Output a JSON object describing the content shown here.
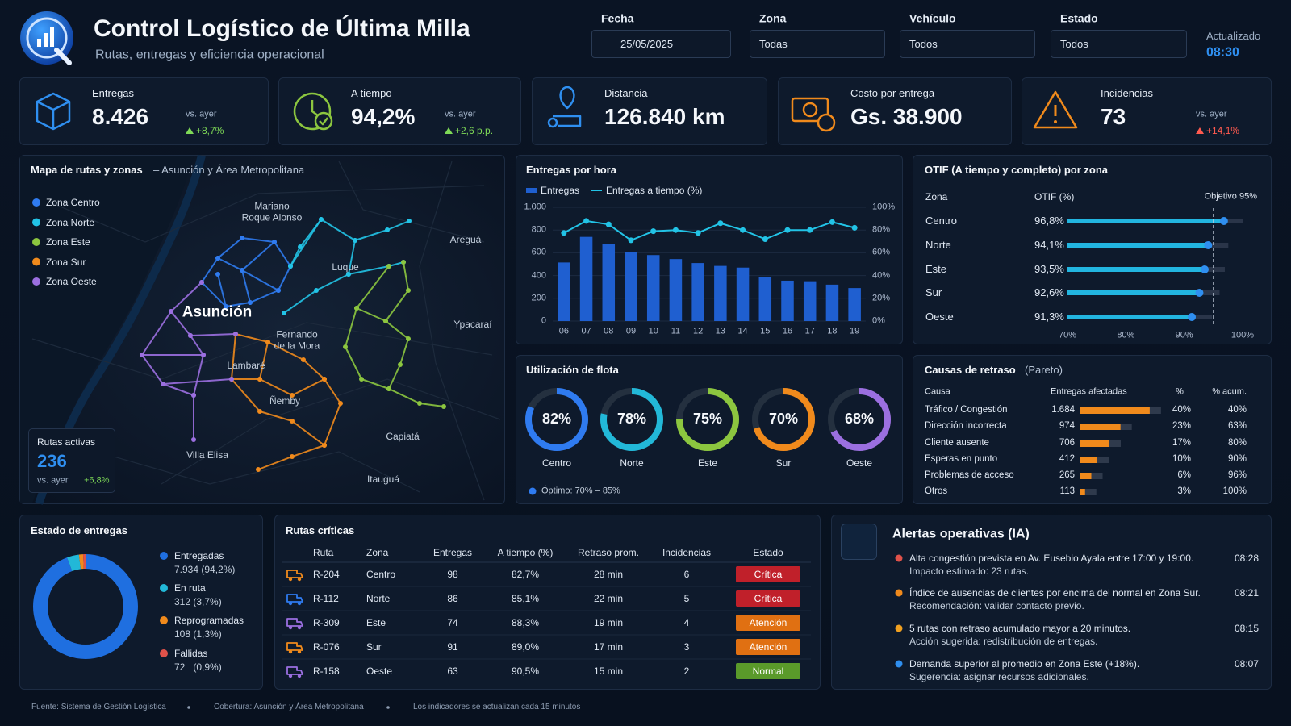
{
  "header": {
    "title": "Control Logístico de Última Milla",
    "subtitle": "Rutas, entregas y eficiencia operacional",
    "updated_label": "Actualizado",
    "updated_time": "08:30"
  },
  "filters": [
    {
      "label": "Fecha",
      "value": "25/05/2025"
    },
    {
      "label": "Zona",
      "value": "Todas"
    },
    {
      "label": "Vehículo",
      "value": "Todos"
    },
    {
      "label": "Estado",
      "value": "Todos"
    }
  ],
  "kpis": [
    {
      "label": "Entregas",
      "value": "8.426",
      "compare": "vs. ayer",
      "change": "+8,7%",
      "change_color": "#7ed957",
      "icon_color": "#2f8ff0"
    },
    {
      "label": "A tiempo",
      "value": "94,2%",
      "compare": "vs. ayer",
      "change": "+2,6 p.p.",
      "change_color": "#7ed957",
      "icon_color": "#8cc63f"
    },
    {
      "label": "Distancia",
      "value": "126.840 km",
      "icon_color": "#2f8ff0"
    },
    {
      "label": "Costo por entrega",
      "value": "Gs. 38.900",
      "icon_color": "#f08a1c"
    },
    {
      "label": "Incidencias",
      "value": "73",
      "compare": "vs. ayer",
      "change": "+14,1%",
      "change_color": "#ff5a4f",
      "icon_color": "#f08a1c"
    }
  ],
  "map": {
    "title": "Mapa de rutas y zonas",
    "subtitle": "– Asunción y Área Metropolitana",
    "legend": [
      {
        "name": "Zona Centro",
        "color": "#2f7bf0"
      },
      {
        "name": "Zona Norte",
        "color": "#22c3e6"
      },
      {
        "name": "Zona Este",
        "color": "#8cc63f"
      },
      {
        "name": "Zona Sur",
        "color": "#f08a1c"
      },
      {
        "name": "Zona Oeste",
        "color": "#9b6fe0"
      }
    ],
    "places": [
      "Mariano Roque Alonso",
      "Luque",
      "Areguá",
      "Asunción",
      "Fernando de la Mora",
      "Ypacaraí",
      "Lambaré",
      "Ñemby",
      "Capiatá",
      "Villa Elisa",
      "Itauguá"
    ],
    "active_routes": {
      "label": "Rutas activas",
      "value": "236",
      "compare": "vs. ayer",
      "change": "+6,8%"
    }
  },
  "chart_data": [
    {
      "type": "bar_line",
      "title": "Entregas por hora",
      "categories": [
        "06",
        "07",
        "08",
        "09",
        "10",
        "11",
        "12",
        "13",
        "14",
        "15",
        "16",
        "17",
        "18",
        "19"
      ],
      "series": [
        {
          "name": "Entregas",
          "color": "#1f5fd0",
          "values": [
            515,
            740,
            680,
            610,
            580,
            545,
            510,
            485,
            470,
            390,
            355,
            350,
            320,
            290
          ]
        },
        {
          "name": "Entregas a tiempo (%)",
          "color": "#22c3e6",
          "axis": "y2",
          "values": [
            77.5,
            88,
            85,
            71,
            79,
            80,
            77.5,
            86,
            80,
            72,
            80,
            80,
            87,
            82
          ]
        }
      ],
      "ylim": [
        0,
        1000
      ],
      "yticks": [
        0,
        200,
        400,
        600,
        800,
        {
          "value": 1000,
          "label": "1.000"
        }
      ],
      "y2lim": [
        0,
        100
      ],
      "y2ticks": [
        {
          "value": 0,
          "label": "0%"
        },
        {
          "value": 20,
          "label": "20%"
        },
        {
          "value": 40,
          "label": "40%"
        },
        {
          "value": 60,
          "label": "60%"
        },
        {
          "value": 80,
          "label": "80%"
        },
        {
          "value": 100,
          "label": "100%"
        }
      ],
      "grid": true
    },
    {
      "type": "hbar",
      "title": "OTIF (A tiempo y completo) por zona",
      "column_labels": [
        "Zona",
        "OTIF (%)"
      ],
      "target_label": "Objetivo 95%",
      "target": 95,
      "categories": [
        "Centro",
        "Norte",
        "Este",
        "Sur",
        "Oeste"
      ],
      "values": [
        96.8,
        94.1,
        93.5,
        92.6,
        91.3
      ],
      "value_labels": [
        "96,8%",
        "94,1%",
        "93,5%",
        "92,6%",
        "91,3%"
      ],
      "color": "#22b5e0",
      "marker_color": "#2f8ff0",
      "xlim": [
        70,
        100
      ],
      "xticks": [
        {
          "value": 70,
          "label": "70%"
        },
        {
          "value": 80,
          "label": "80%"
        },
        {
          "value": 90,
          "label": "90%"
        },
        {
          "value": 100,
          "label": "100%"
        }
      ]
    },
    {
      "type": "gauges",
      "title": "Utilización de flota",
      "categories": [
        "Centro",
        "Norte",
        "Este",
        "Sur",
        "Oeste"
      ],
      "values": [
        82,
        78,
        75,
        70,
        68
      ],
      "value_labels": [
        "82%",
        "78%",
        "75%",
        "70%",
        "68%"
      ],
      "colors": [
        "#2f7bf0",
        "#22b8d8",
        "#8cc63f",
        "#f08a1c",
        "#9b6fe0"
      ],
      "ylim": [
        0,
        100
      ],
      "note": "Óptimo: 70% – 85%",
      "note_color": "#2f7bf0"
    },
    {
      "type": "pareto",
      "title": "Causas de retraso",
      "subtitle": "(Pareto)",
      "columns": [
        "Causa",
        "Entregas afectadas",
        "%",
        "% acum."
      ],
      "categories": [
        "Tráfico / Congestión",
        "Dirección incorrecta",
        "Cliente ausente",
        "Esperas en punto",
        "Problemas de acceso",
        "Otros"
      ],
      "values": [
        1684,
        974,
        706,
        412,
        265,
        113
      ],
      "value_labels": [
        "1.684",
        "974",
        "706",
        "412",
        "265",
        "113"
      ],
      "percent_labels": [
        "40%",
        "23%",
        "17%",
        "10%",
        "6%",
        "3%"
      ],
      "cumulative_labels": [
        "40%",
        "63%",
        "80%",
        "90%",
        "96%",
        "100%"
      ],
      "color": "#f08a1c",
      "xlim": [
        0,
        2000
      ]
    },
    {
      "type": "donut",
      "title": "Estado de entregas",
      "categories": [
        "Entregadas",
        "En ruta",
        "Reprogramadas",
        "Fallidas"
      ],
      "values": [
        7934,
        312,
        108,
        72
      ],
      "value_labels": [
        "7.934 (94,2%)",
        "312 (3,7%)",
        "108 (1,3%)",
        "72   (0,9%)"
      ],
      "colors": [
        "#1f6fe0",
        "#22b8d8",
        "#f08a1c",
        "#e0524a"
      ]
    }
  ],
  "critical_routes": {
    "title": "Rutas críticas",
    "columns": [
      "Ruta",
      "Zona",
      "Entregas",
      "A tiempo (%)",
      "Retraso prom.",
      "Incidencias",
      "Estado"
    ],
    "rows": [
      {
        "cells": [
          "R-204",
          "Centro",
          "98",
          "82,7%",
          "28 min",
          "6",
          "Crítica"
        ],
        "status_color": "#c0202a",
        "icon_color": "#f08a1c"
      },
      {
        "cells": [
          "R-112",
          "Norte",
          "86",
          "85,1%",
          "22 min",
          "5",
          "Crítica"
        ],
        "status_color": "#c0202a",
        "icon_color": "#2f7bf0"
      },
      {
        "cells": [
          "R-309",
          "Este",
          "74",
          "88,3%",
          "19 min",
          "4",
          "Atención"
        ],
        "status_color": "#e07012",
        "icon_color": "#9b6fe0"
      },
      {
        "cells": [
          "R-076",
          "Sur",
          "91",
          "89,0%",
          "17 min",
          "3",
          "Atención"
        ],
        "status_color": "#e07012",
        "icon_color": "#f08a1c"
      },
      {
        "cells": [
          "R-158",
          "Oeste",
          "63",
          "90,5%",
          "15 min",
          "2",
          "Normal"
        ],
        "status_color": "#5a9a2a",
        "icon_color": "#9b6fe0"
      }
    ]
  },
  "alerts": {
    "title": "Alertas operativas (IA)",
    "items": [
      {
        "line1": "Alta congestión prevista en Av. Eusebio Ayala entre 17:00 y 19:00.",
        "line2": "Impacto estimado: 23 rutas.",
        "time": "08:28",
        "color": "#e0524a"
      },
      {
        "line1": "Índice de ausencias de clientes por encima del normal en Zona Sur.",
        "line2": "Recomendación: validar contacto previo.",
        "time": "08:21",
        "color": "#f08a1c"
      },
      {
        "line1": "5 rutas con retraso acumulado mayor a 20 minutos.",
        "line2": "Acción sugerida: redistribución de entregas.",
        "time": "08:15",
        "color": "#f0a020"
      },
      {
        "line1": "Demanda superior al promedio en Zona Este (+18%).",
        "line2": "Sugerencia: asignar recursos adicionales.",
        "time": "08:07",
        "color": "#2f8ff0"
      }
    ]
  },
  "footer": [
    "Fuente: Sistema de Gestión Logística",
    "Cobertura: Asunción y Área Metropolitana",
    "Los indicadores se actualizan cada 15 minutos"
  ]
}
